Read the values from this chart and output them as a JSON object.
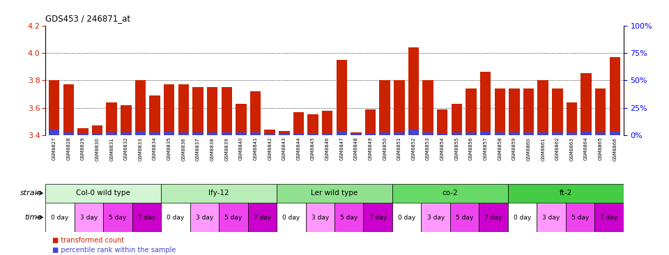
{
  "title": "GDS453 / 246871_at",
  "samples": [
    "GSM8827",
    "GSM8828",
    "GSM8829",
    "GSM8830",
    "GSM8831",
    "GSM8832",
    "GSM8833",
    "GSM8834",
    "GSM8835",
    "GSM8836",
    "GSM8837",
    "GSM8838",
    "GSM8839",
    "GSM8840",
    "GSM8841",
    "GSM8842",
    "GSM8843",
    "GSM8844",
    "GSM8845",
    "GSM8846",
    "GSM8847",
    "GSM8848",
    "GSM8849",
    "GSM8850",
    "GSM8851",
    "GSM8852",
    "GSM8853",
    "GSM8854",
    "GSM8855",
    "GSM8856",
    "GSM8857",
    "GSM8858",
    "GSM8859",
    "GSM8860",
    "GSM8861",
    "GSM8862",
    "GSM8863",
    "GSM8864",
    "GSM8865",
    "GSM8866"
  ],
  "red_values": [
    3.8,
    3.77,
    3.45,
    3.47,
    3.64,
    3.62,
    3.8,
    3.69,
    3.77,
    3.77,
    3.75,
    3.75,
    3.75,
    3.63,
    3.72,
    3.44,
    3.43,
    3.57,
    3.55,
    3.58,
    3.95,
    3.42,
    3.59,
    3.8,
    3.8,
    4.04,
    3.8,
    3.59,
    3.63,
    3.74,
    3.86,
    3.74,
    3.74,
    3.74,
    3.8,
    3.74,
    3.64,
    3.85,
    3.74,
    3.97
  ],
  "blue_values": [
    0.04,
    0.02,
    0.01,
    0.01,
    0.02,
    0.02,
    0.03,
    0.02,
    0.03,
    0.02,
    0.02,
    0.02,
    0.02,
    0.02,
    0.02,
    0.01,
    0.01,
    0.01,
    0.01,
    0.01,
    0.03,
    0.01,
    0.01,
    0.02,
    0.02,
    0.04,
    0.02,
    0.01,
    0.02,
    0.02,
    0.03,
    0.02,
    0.02,
    0.02,
    0.02,
    0.02,
    0.02,
    0.03,
    0.02,
    0.03
  ],
  "ylim": [
    3.4,
    4.2
  ],
  "yticks": [
    3.4,
    3.6,
    3.8,
    4.0,
    4.2
  ],
  "right_ytick_vals": [
    0,
    25,
    50,
    75,
    100
  ],
  "right_ytick_labels": [
    "0%",
    "25%",
    "50%",
    "75%",
    "100%"
  ],
  "strains": [
    {
      "label": "Col-0 wild type",
      "start": 0,
      "end": 8,
      "color": "#d4f5d4"
    },
    {
      "label": "lfy-12",
      "start": 8,
      "end": 16,
      "color": "#b8edb8"
    },
    {
      "label": "Ler wild type",
      "start": 16,
      "end": 24,
      "color": "#90e090"
    },
    {
      "label": "co-2",
      "start": 24,
      "end": 32,
      "color": "#66d966"
    },
    {
      "label": "ft-2",
      "start": 32,
      "end": 40,
      "color": "#44cc44"
    }
  ],
  "time_labels": [
    "0 day",
    "3 day",
    "5 day",
    "7 day"
  ],
  "time_colors": [
    "#ffffff",
    "#ff99ff",
    "#ee44ee",
    "#cc00cc"
  ],
  "bar_color": "#cc2200",
  "blue_color": "#4444cc",
  "tick_label_color": "#cc2200"
}
